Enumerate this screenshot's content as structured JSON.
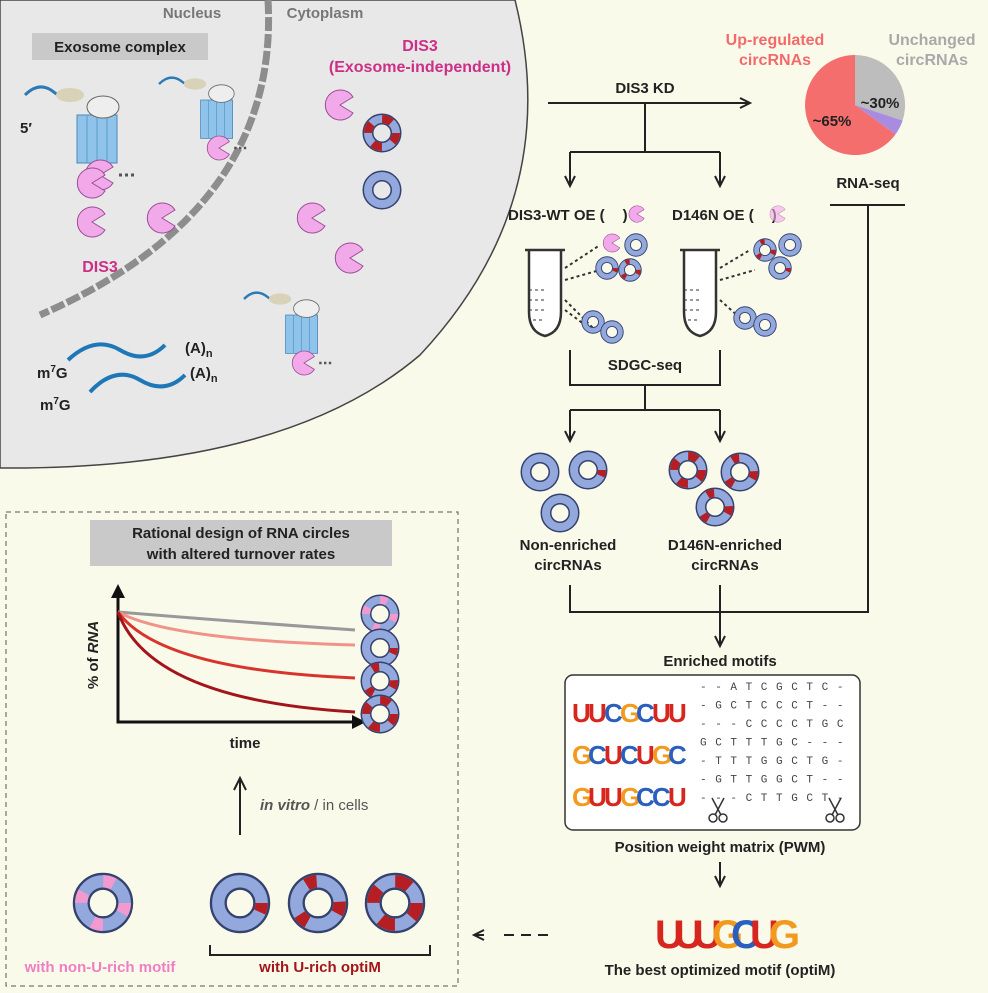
{
  "cell": {
    "nucleus": "Nucleus",
    "cytoplasm": "Cytoplasm",
    "exosome_complex": "Exosome complex",
    "dis3_independent": [
      "DIS3",
      "(Exosome-independent)"
    ],
    "five_prime": "5′",
    "dis3": "DIS3",
    "poly_a": "(A)",
    "poly_a_sub": "n",
    "cap_m": "m",
    "cap_sup": "7",
    "cap_g": "G"
  },
  "workflow": {
    "dis3_kd": "DIS3 KD",
    "upregulated": [
      "Up-regulated",
      "circRNAs"
    ],
    "unchanged": [
      "Unchanged",
      "circRNAs"
    ],
    "pie_up": "~65%",
    "pie_unchanged": "~30%",
    "rna_seq": "RNA-seq",
    "wt_oe": "DIS3-WT OE (",
    "wt_close": ")",
    "mut_oe": "D146N OE (",
    "mut_close": ")",
    "sdgc_seq": "SDGC-seq",
    "non_enriched": [
      "Non-enriched",
      "circRNAs"
    ],
    "d146n_enriched": [
      "D146N-enriched",
      "circRNAs"
    ],
    "enriched_motifs": "Enriched motifs",
    "pwm_caption": "Position weight matrix (PWM)",
    "optim_caption": "The best optimized motif (optiM)"
  },
  "pwm": {
    "logos": [
      [
        "U",
        "U",
        "C",
        "G",
        "C",
        "U",
        "U"
      ],
      [
        "G",
        "C",
        "U",
        "C",
        "U",
        "G",
        "C"
      ],
      [
        "G",
        "U",
        "U",
        "G",
        "C",
        "C",
        "U"
      ]
    ],
    "rows": [
      "- - A T C G C T C -",
      "- G C T C C C T - -",
      "- - - C C C C T G C",
      "G C T T T G C - - -",
      "- T T T G G C T G -",
      "- G T T G G C T - -",
      "- - - C T T G C T -"
    ],
    "optim": [
      "U",
      "U",
      "U",
      "G",
      "C",
      "U",
      "G"
    ]
  },
  "design": {
    "title": [
      "Rational design of RNA circles",
      "with altered turnover rates"
    ],
    "y_label_pre": "% of ",
    "y_label_it": "RNA",
    "x_label": "time",
    "condition_it": "in vitro",
    "condition": " / in cells",
    "non_u_rich": "with non-U-rich motif",
    "u_rich": "with U-rich optiM"
  }
}
